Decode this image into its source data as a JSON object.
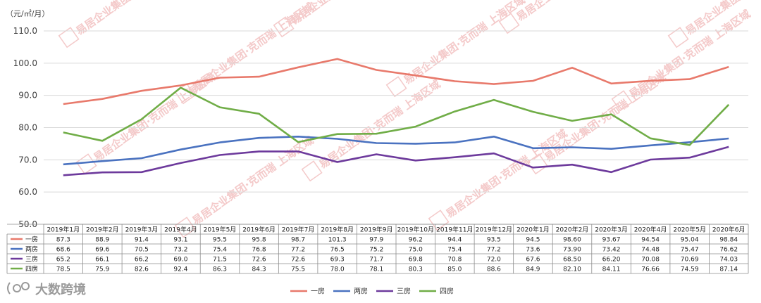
{
  "chart_data": {
    "type": "line",
    "unit_label": "（元/㎡/月）",
    "ylim": [
      50.0,
      110.0
    ],
    "yticks": [
      "50.0",
      "60.0",
      "70.0",
      "80.0",
      "90.0",
      "100.0",
      "110.0"
    ],
    "categories": [
      "2019年1月",
      "2019年2月",
      "2019年3月",
      "2019年4月",
      "2019年5月",
      "2019年6月",
      "2019年7月",
      "2019年8月",
      "2019年9月",
      "2019年10月",
      "2019年11月",
      "2019年12月",
      "2020年1月",
      "2020年2月",
      "2020年3月",
      "2020年4月",
      "2020年5月",
      "2020年6月"
    ],
    "series": [
      {
        "name": "一房",
        "color": "#e8796b",
        "values": [
          87.3,
          88.9,
          91.4,
          93.1,
          95.5,
          95.8,
          98.7,
          101.3,
          97.9,
          96.2,
          94.4,
          93.5,
          94.5,
          98.6,
          93.67,
          94.54,
          95.04,
          98.84
        ],
        "labels": [
          "87.3",
          "88.9",
          "91.4",
          "93.1",
          "95.5",
          "95.8",
          "98.7",
          "101.3",
          "97.9",
          "96.2",
          "94.4",
          "93.5",
          "94.5",
          "98.60",
          "93.67",
          "94.54",
          "95.04",
          "98.84"
        ]
      },
      {
        "name": "两房",
        "color": "#4a72c0",
        "values": [
          68.6,
          69.6,
          70.5,
          73.2,
          75.4,
          76.8,
          77.2,
          76.5,
          75.2,
          75.0,
          75.4,
          77.2,
          73.6,
          73.9,
          73.42,
          74.48,
          75.47,
          76.62
        ],
        "labels": [
          "68.6",
          "69.6",
          "70.5",
          "73.2",
          "75.4",
          "76.8",
          "77.2",
          "76.5",
          "75.2",
          "75.0",
          "75.4",
          "77.2",
          "73.6",
          "73.90",
          "73.42",
          "74.48",
          "75.47",
          "76.62"
        ]
      },
      {
        "name": "三房",
        "color": "#6d3a9c",
        "values": [
          65.2,
          66.1,
          66.2,
          69.0,
          71.5,
          72.6,
          72.6,
          69.3,
          71.7,
          69.8,
          70.8,
          72.0,
          67.6,
          68.5,
          66.2,
          70.08,
          70.69,
          74.03
        ],
        "labels": [
          "65.2",
          "66.1",
          "66.2",
          "69.0",
          "71.5",
          "72.6",
          "72.6",
          "69.3",
          "71.7",
          "69.8",
          "70.8",
          "72.0",
          "67.6",
          "68.50",
          "66.20",
          "70.08",
          "70.69",
          "74.03"
        ]
      },
      {
        "name": "四房",
        "color": "#70ad47",
        "values": [
          78.5,
          75.9,
          82.6,
          92.4,
          86.3,
          84.3,
          75.5,
          78.0,
          78.1,
          80.3,
          85.0,
          88.6,
          84.9,
          82.1,
          84.11,
          76.66,
          74.59,
          87.14
        ],
        "labels": [
          "78.5",
          "75.9",
          "82.6",
          "92.4",
          "86.3",
          "84.3",
          "75.5",
          "78.0",
          "78.1",
          "80.3",
          "85.0",
          "88.6",
          "84.9",
          "82.10",
          "84.11",
          "76.66",
          "74.59",
          "87.14"
        ]
      }
    ]
  },
  "watermark": {
    "text": "易居企业集团·克而瑞 上海区域"
  },
  "logo": {
    "text": "大数跨境"
  }
}
